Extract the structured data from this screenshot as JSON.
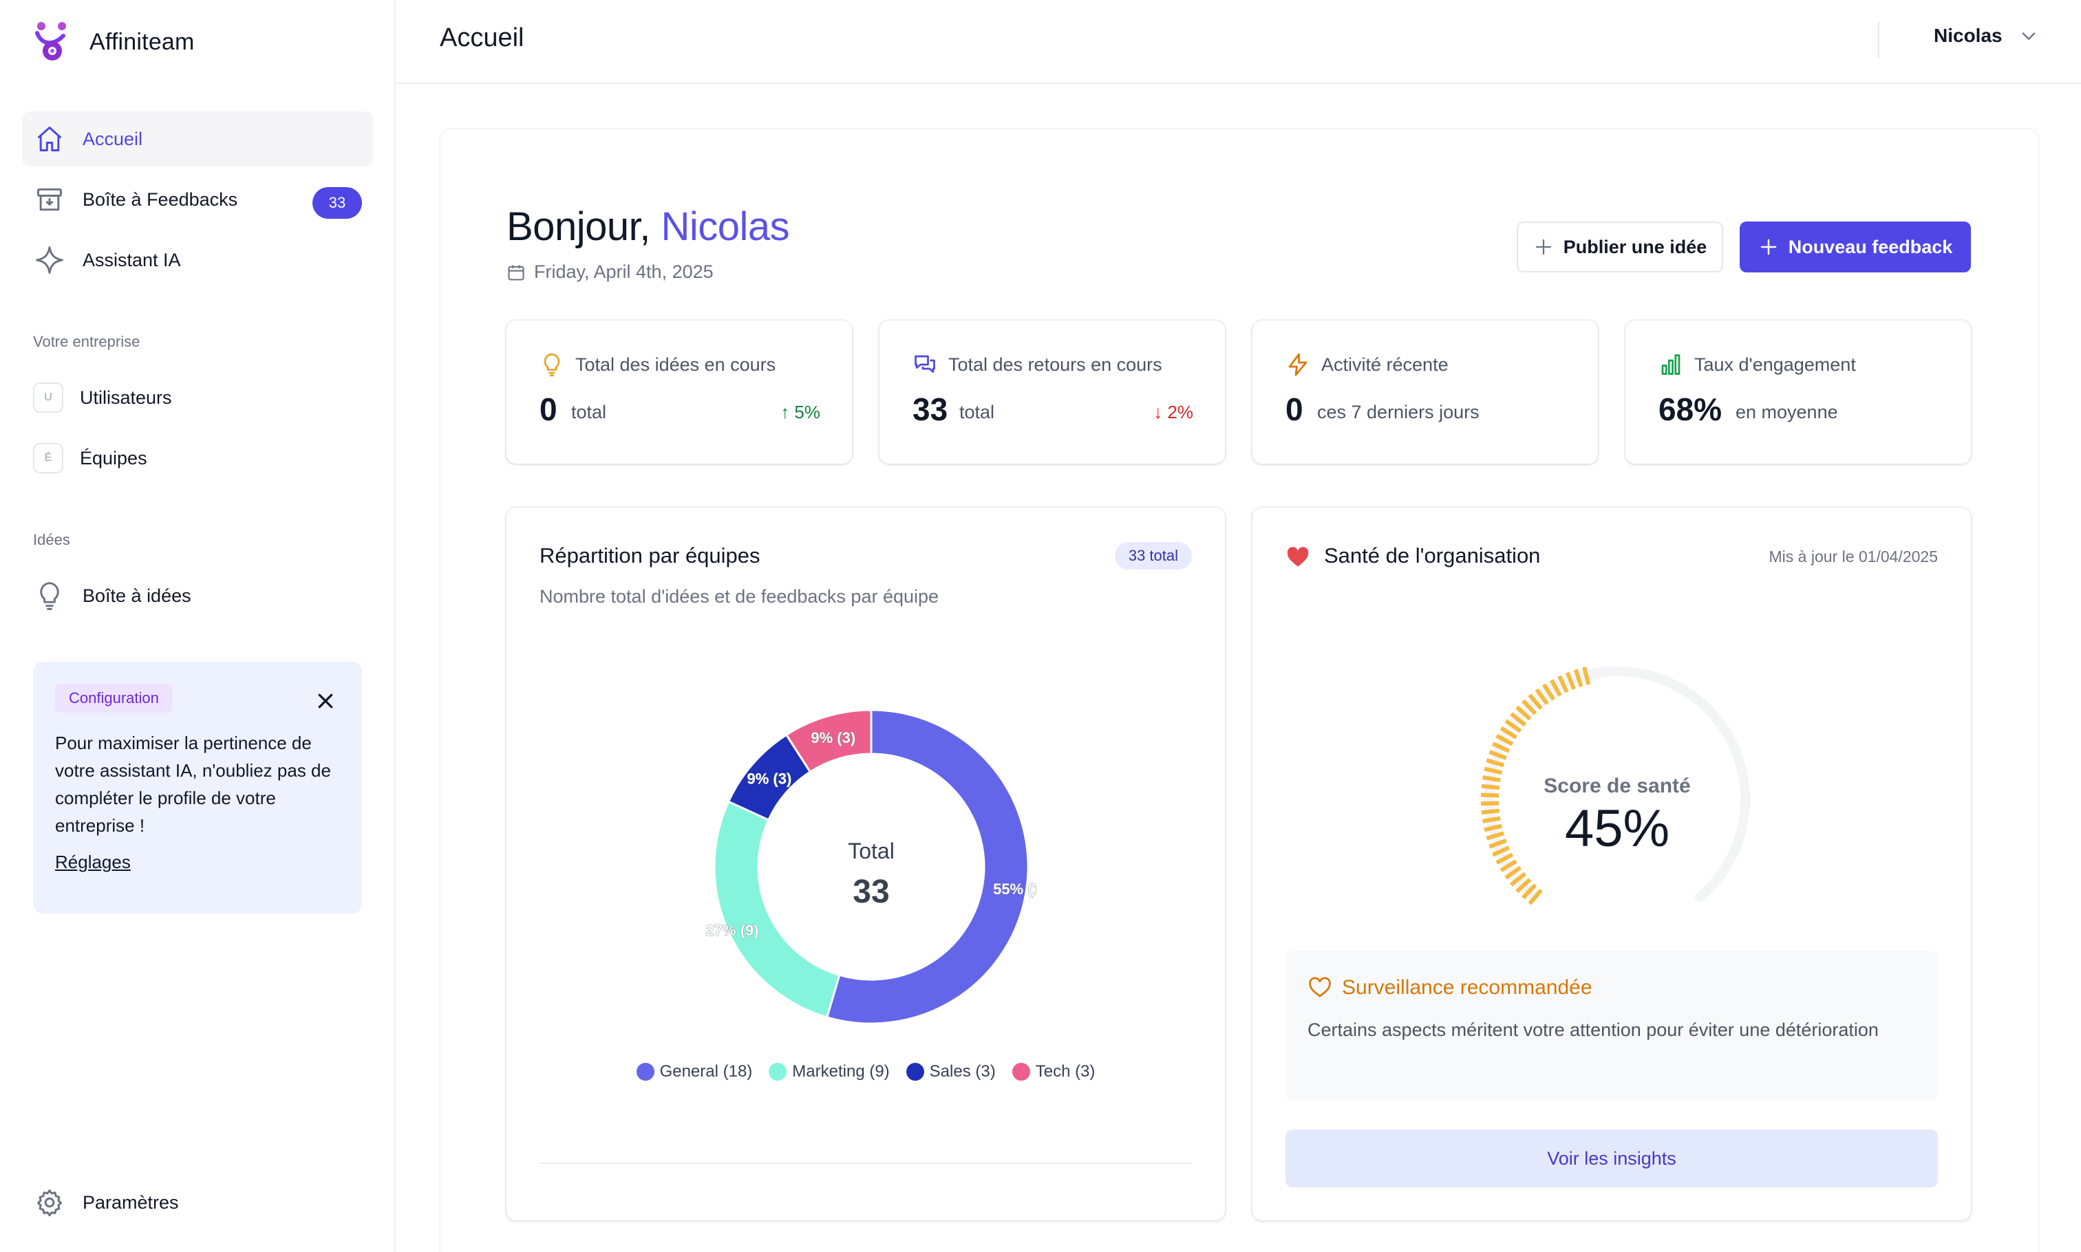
{
  "app": {
    "name": "Affiniteam"
  },
  "sidebar": {
    "items": [
      {
        "label": "Accueil",
        "icon": "home-icon"
      },
      {
        "label": "Boîte à Feedbacks",
        "icon": "inbox-icon",
        "badge": "33"
      },
      {
        "label": "Assistant IA",
        "icon": "sparkle-icon"
      }
    ],
    "company_section": {
      "title": "Votre entreprise",
      "items": [
        {
          "label": "Utilisateurs",
          "letter": "U"
        },
        {
          "label": "Équipes",
          "letter": "É"
        }
      ]
    },
    "ideas_section": {
      "title": "Idées",
      "items": [
        {
          "label": "Boîte à idées",
          "icon": "lightbulb-icon"
        }
      ]
    },
    "config_card": {
      "chip": "Configuration",
      "text": "Pour maximiser la pertinence de votre assistant IA, n'oubliez pas de compléter le profile de votre entreprise !",
      "link": "Réglages"
    },
    "settings_label": "Paramètres"
  },
  "header": {
    "title": "Accueil",
    "user": "Nicolas"
  },
  "main": {
    "greeting_prefix": "Bonjour,",
    "greeting_name": "Nicolas",
    "date": "Friday, April 4th, 2025",
    "buttons": {
      "publish": "Publier une idée",
      "new_feedback": "Nouveau feedback"
    },
    "stats": [
      {
        "label": "Total des idées en cours",
        "value": "0",
        "unit": "total",
        "trend": "↑ 5%",
        "trend_dir": "up",
        "icon": "lightbulb-icon"
      },
      {
        "label": "Total des retours en cours",
        "value": "33",
        "unit": "total",
        "trend": "↓ 2%",
        "trend_dir": "down",
        "icon": "chat-icon"
      },
      {
        "label": "Activité récente",
        "value": "0",
        "unit": "ces 7 derniers jours",
        "icon": "lightning-icon"
      },
      {
        "label": "Taux d'engagement",
        "value": "68%",
        "unit": "en moyenne",
        "icon": "bar-chart-icon"
      }
    ],
    "distribution": {
      "title": "Répartition par équipes",
      "subtitle": "Nombre total d'idées et de feedbacks par équipe",
      "chip": "33 total",
      "center_label": "Total",
      "center_value": "33"
    },
    "health": {
      "title": "Santé de l'organisation",
      "updated": "Mis à jour le 01/04/2025",
      "score_label": "Score de santé",
      "score_value": "45%",
      "score": 0.45,
      "alert_title": "Surveillance recommandée",
      "alert_text": "Certains aspects méritent votre attention pour éviter une détérioration",
      "cta": "Voir les insights"
    }
  },
  "colors": {
    "accent": "#4f46e5",
    "general": "#6366e8",
    "marketing": "#84f5dc",
    "sales": "#1e30b8",
    "tech": "#ec5f8c",
    "gauge": "#f5b942",
    "warning": "#d97706"
  },
  "chart_data": {
    "type": "pie",
    "categories": [
      "General",
      "Marketing",
      "Sales",
      "Tech"
    ],
    "values": [
      18,
      9,
      3,
      3
    ],
    "labels": [
      "55% (18)",
      "27% (9)",
      "9% (3)",
      "9% (3)"
    ],
    "legend": [
      "General (18)",
      "Marketing (9)",
      "Sales (3)",
      "Tech (3)"
    ],
    "colors": [
      "#6366e8",
      "#84f5dc",
      "#1e30b8",
      "#ec5f8c"
    ],
    "total": 33
  }
}
